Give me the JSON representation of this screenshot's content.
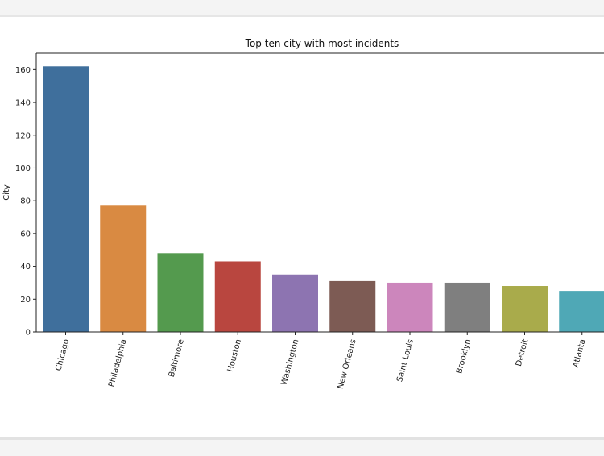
{
  "chart_data": {
    "type": "bar",
    "title": "Top ten city with most incidents",
    "xlabel": "",
    "ylabel": "City",
    "categories": [
      "Chicago",
      "Philadelphia",
      "Baltimore",
      "Houston",
      "Washington",
      "New Orleans",
      "Saint Louis",
      "Brooklyn",
      "Detroit",
      "Atlanta"
    ],
    "values": [
      162,
      77,
      48,
      43,
      35,
      31,
      30,
      30,
      28,
      25
    ],
    "colors": [
      "#3f6f9c",
      "#d98a42",
      "#549a4e",
      "#b9463f",
      "#8d74b1",
      "#7d5b54",
      "#cc86bc",
      "#7f7f7f",
      "#a9ab4b",
      "#4fa8b6"
    ],
    "ylim": [
      0,
      170
    ],
    "yticks": [
      0,
      20,
      40,
      60,
      80,
      100,
      120,
      140,
      160
    ],
    "grid": false,
    "legend": "none"
  }
}
